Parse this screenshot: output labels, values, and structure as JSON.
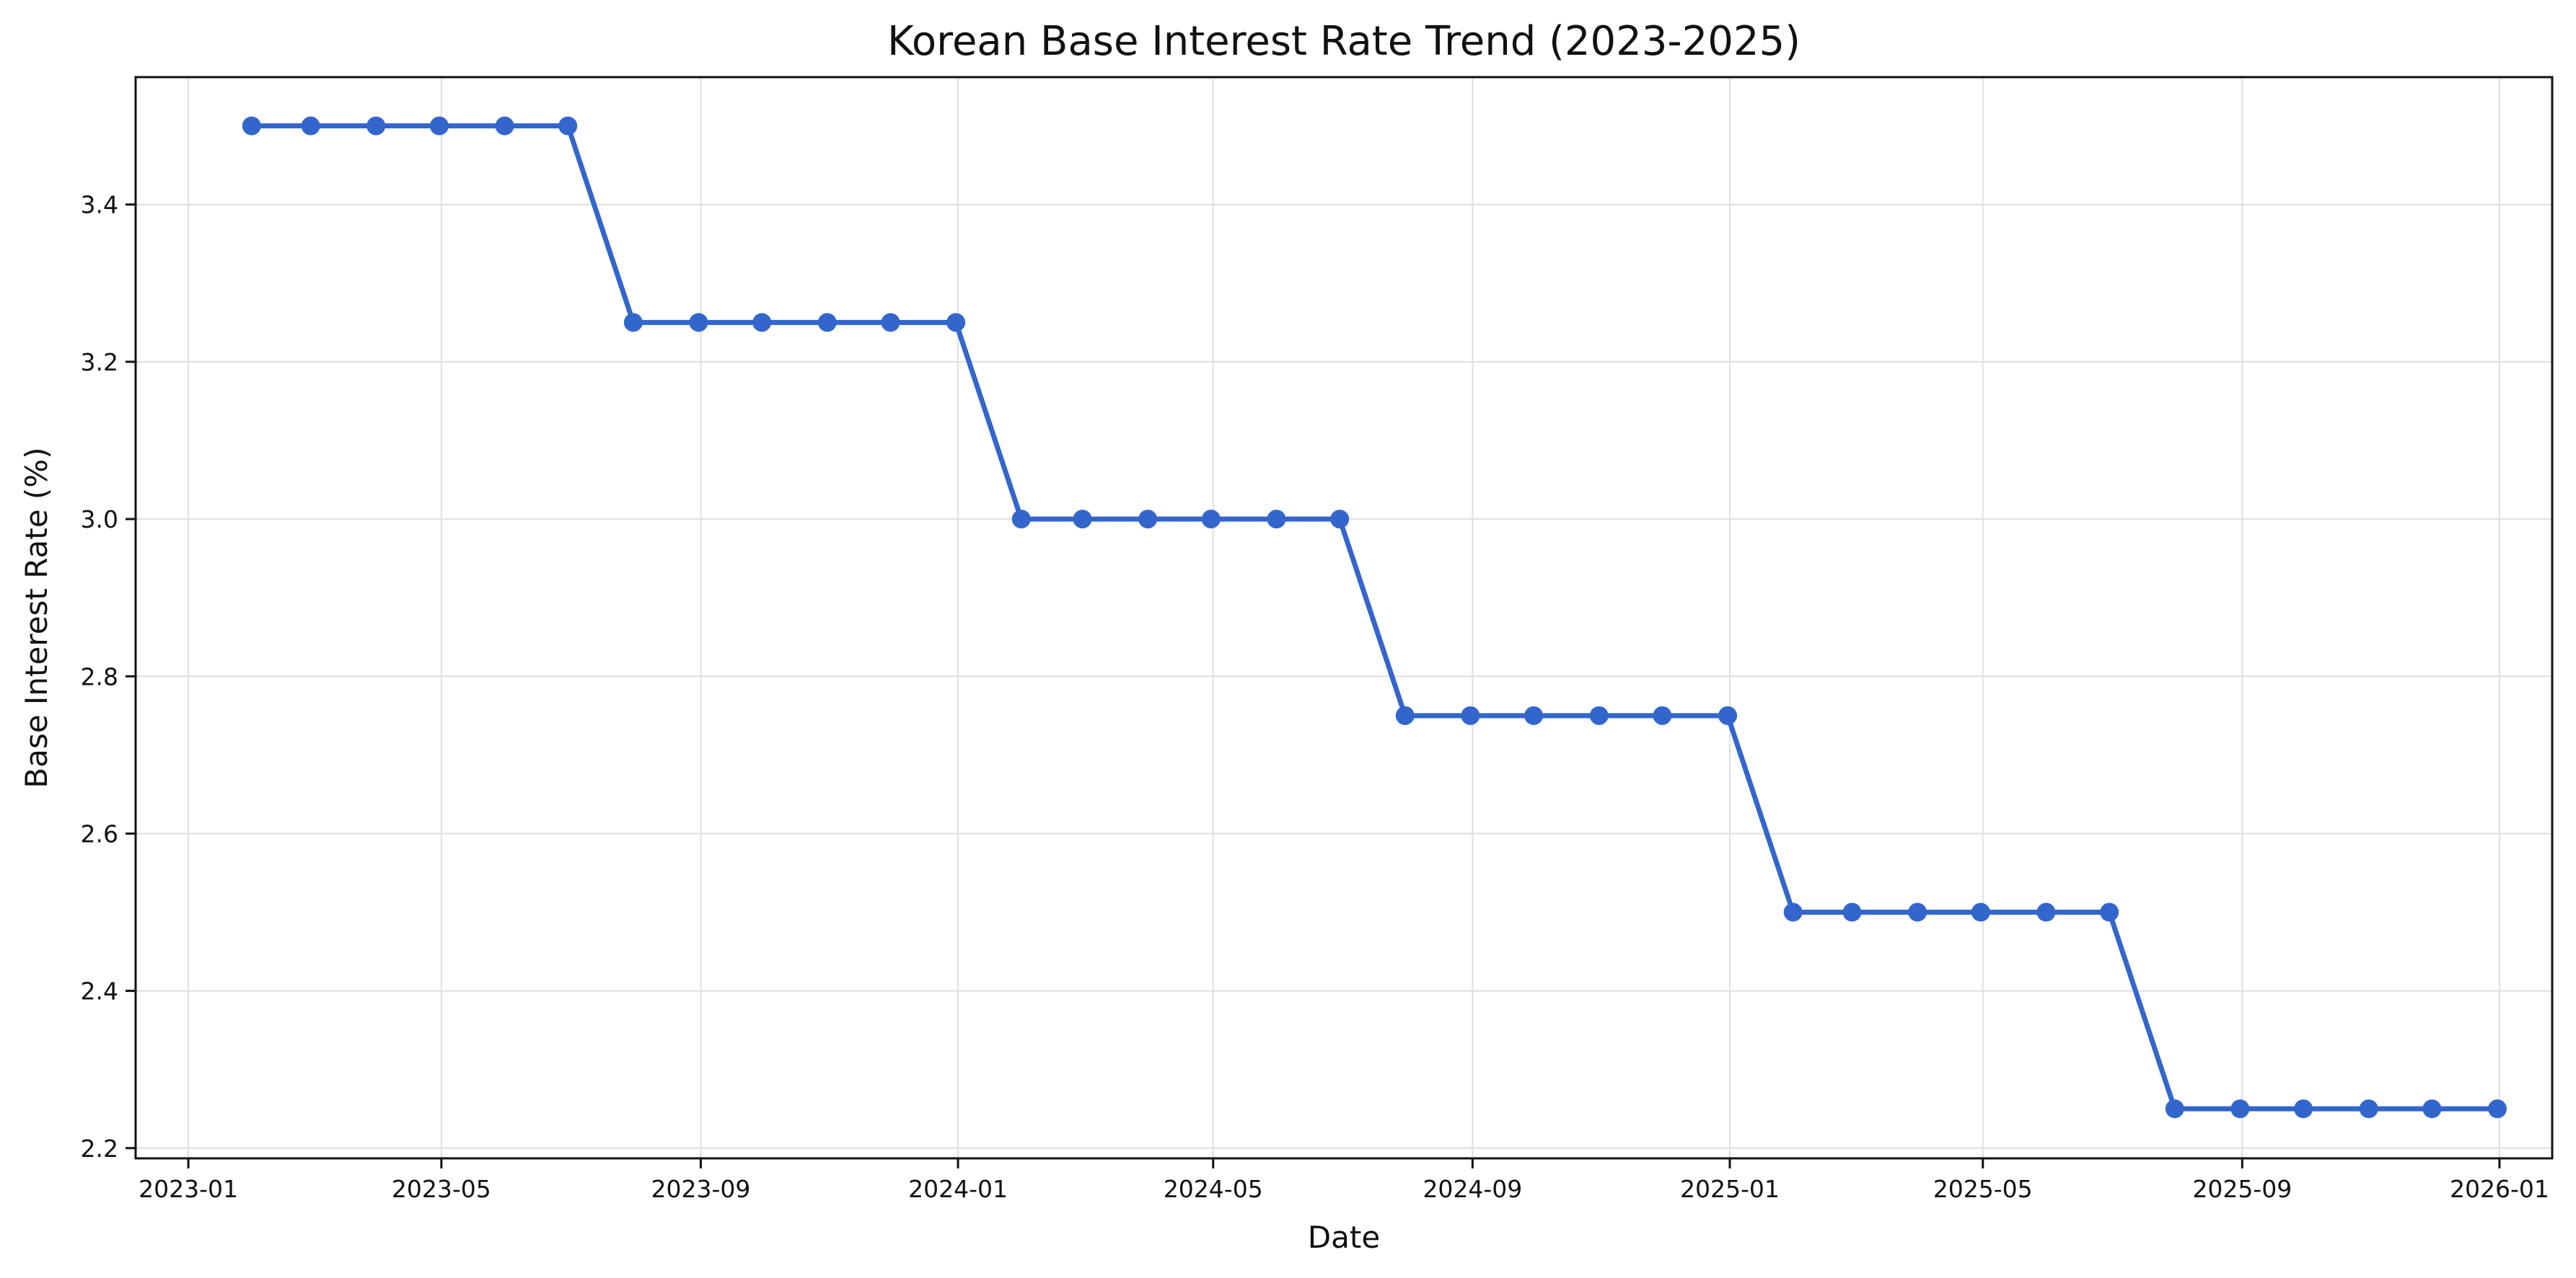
{
  "chart_data": {
    "type": "line",
    "title": "Korean Base Interest Rate Trend (2023-2025)",
    "xlabel": "Date",
    "ylabel": "Base Interest Rate (%)",
    "xlim": [
      "2022-12-07",
      "2026-01-26"
    ],
    "ylim": [
      2.187,
      3.562
    ],
    "grid": true,
    "x_ticks": [
      "2023-01",
      "2023-05",
      "2023-09",
      "2024-01",
      "2024-05",
      "2024-09",
      "2025-01",
      "2025-05",
      "2025-09",
      "2026-01"
    ],
    "y_ticks": [
      "2.2",
      "2.4",
      "2.6",
      "2.8",
      "3.0",
      "3.2",
      "3.4"
    ],
    "colors": {
      "series": "#3366cc",
      "grid": "#dedede",
      "axis": "#111111"
    },
    "series": [
      {
        "x": [
          "2023-01-31",
          "2023-02-28",
          "2023-03-31",
          "2023-04-30",
          "2023-05-31",
          "2023-06-30",
          "2023-07-31",
          "2023-08-31",
          "2023-09-30",
          "2023-10-31",
          "2023-11-30",
          "2023-12-31",
          "2024-01-31",
          "2024-02-29",
          "2024-03-31",
          "2024-04-30",
          "2024-05-31",
          "2024-06-30",
          "2024-07-31",
          "2024-08-31",
          "2024-09-30",
          "2024-10-31",
          "2024-11-30",
          "2024-12-31",
          "2025-01-31",
          "2025-02-28",
          "2025-03-31",
          "2025-04-30",
          "2025-05-31",
          "2025-06-30",
          "2025-07-31",
          "2025-08-31",
          "2025-09-30",
          "2025-10-31",
          "2025-11-30",
          "2025-12-31"
        ],
        "values": [
          3.5,
          3.5,
          3.5,
          3.5,
          3.5,
          3.5,
          3.25,
          3.25,
          3.25,
          3.25,
          3.25,
          3.25,
          3.0,
          3.0,
          3.0,
          3.0,
          3.0,
          3.0,
          2.75,
          2.75,
          2.75,
          2.75,
          2.75,
          2.75,
          2.5,
          2.5,
          2.5,
          2.5,
          2.5,
          2.5,
          2.25,
          2.25,
          2.25,
          2.25,
          2.25,
          2.25
        ]
      }
    ]
  }
}
